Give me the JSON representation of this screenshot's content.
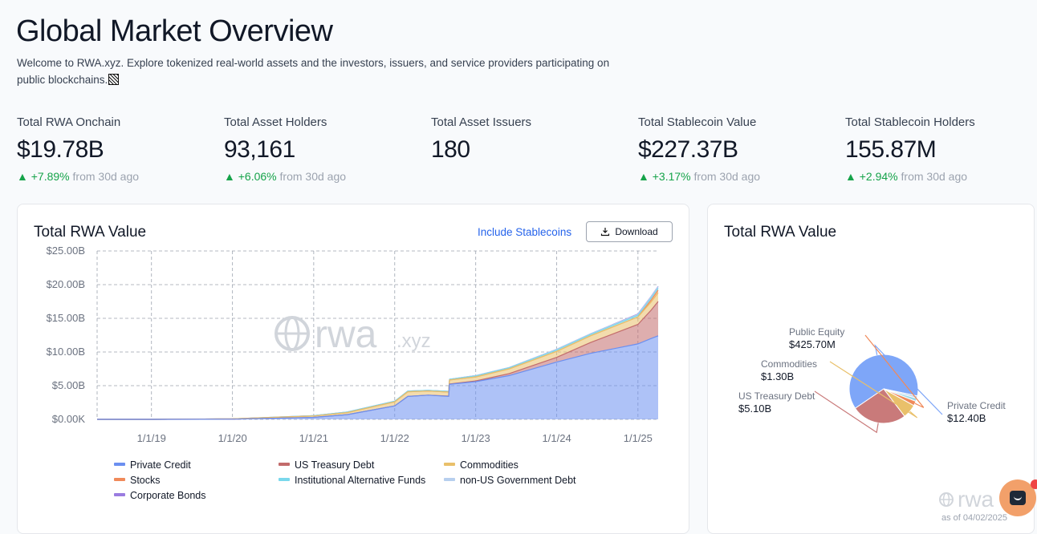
{
  "page": {
    "title": "Global Market Overview",
    "subtitle": "Welcome to RWA.xyz. Explore tokenized real-world assets and the investors, issuers, and service providers participating on public blockchains."
  },
  "stats": [
    {
      "label": "Total RWA Onchain",
      "value": "$19.78B",
      "delta": "▲ +7.89%",
      "period": "from 30d ago"
    },
    {
      "label": "Total Asset Holders",
      "value": "93,161",
      "delta": "▲ +6.06%",
      "period": "from 30d ago"
    },
    {
      "label": "Total Asset Issuers",
      "value": "180",
      "delta": "",
      "period": ""
    },
    {
      "label": "Total Stablecoin Value",
      "value": "$227.37B",
      "delta": "▲ +3.17%",
      "period": "from 30d ago"
    },
    {
      "label": "Total Stablecoin Holders",
      "value": "155.87M",
      "delta": "▲ +2.94%",
      "period": "from 30d ago"
    }
  ],
  "area_card": {
    "title": "Total RWA Value",
    "include_label": "Include Stablecoins",
    "download_label": "Download",
    "watermark": "rwa",
    "watermark_suffix": ".xyz"
  },
  "pie_card": {
    "title": "Total RWA Value",
    "watermark": "rwa",
    "as_of": "as of 04/02/2025"
  },
  "colors": {
    "private_credit": "#6b8ff0",
    "us_treasury": "#c26b6b",
    "commodities": "#e9c06a",
    "stocks": "#f08a5a",
    "inst_alt_funds": "#7ad8ec",
    "non_us_gov": "#b7cfee",
    "corporate_bonds": "#9a7ce0",
    "positive": "#16a34a",
    "link": "#2563eb"
  },
  "chart_data": [
    {
      "type": "area",
      "stacked": true,
      "title": "Total RWA Value",
      "y_ticks": [
        "$0.00K",
        "$5.00B",
        "$10.00B",
        "$15.00B",
        "$20.00B",
        "$25.00B"
      ],
      "x_ticks": [
        "1/1/19",
        "1/1/20",
        "1/1/21",
        "1/1/22",
        "1/1/23",
        "1/1/24",
        "1/1/25"
      ],
      "ylim": [
        0,
        25
      ],
      "y_unit": "B",
      "x_range": [
        "2018-05-01",
        "2025-04-02"
      ],
      "grid": true,
      "legend_position": "bottom",
      "x": [
        "2018-05-01",
        "2019-01-01",
        "2020-01-01",
        "2021-01-01",
        "2021-06-01",
        "2022-01-01",
        "2022-03-01",
        "2022-06-01",
        "2022-09-01",
        "2022-09-05",
        "2023-01-01",
        "2023-06-01",
        "2024-01-01",
        "2024-06-01",
        "2025-01-01",
        "2025-03-01",
        "2025-04-02"
      ],
      "series": [
        {
          "name": "Private Credit",
          "color": "#6b8ff0",
          "values": [
            0,
            0,
            0.02,
            0.3,
            0.7,
            2.0,
            3.4,
            3.6,
            3.4,
            5.2,
            5.6,
            6.5,
            8.5,
            9.8,
            11.2,
            12.0,
            12.4
          ]
        },
        {
          "name": "US Treasury Debt",
          "color": "#c26b6b",
          "values": [
            0,
            0,
            0,
            0,
            0,
            0,
            0,
            0,
            0.05,
            0.05,
            0.1,
            0.3,
            0.7,
            1.6,
            2.9,
            4.2,
            5.1
          ]
        },
        {
          "name": "Commodities",
          "color": "#e9c06a",
          "values": [
            0,
            0,
            0.05,
            0.2,
            0.3,
            0.6,
            0.7,
            0.6,
            0.6,
            0.6,
            0.6,
            0.7,
            0.9,
            1.0,
            1.1,
            1.2,
            1.3
          ]
        },
        {
          "name": "Stocks",
          "color": "#f08a5a",
          "values": [
            0,
            0,
            0,
            0,
            0,
            0,
            0,
            0,
            0,
            0,
            0,
            0,
            0,
            0,
            0,
            0.3,
            0.4
          ]
        },
        {
          "name": "Institutional Alternative Funds",
          "color": "#7ad8ec",
          "values": [
            0,
            0,
            0,
            0.05,
            0.1,
            0.1,
            0.1,
            0.1,
            0.1,
            0.1,
            0.15,
            0.15,
            0.2,
            0.2,
            0.25,
            0.3,
            0.3
          ]
        },
        {
          "name": "non-US Government Debt",
          "color": "#b7cfee",
          "values": [
            0,
            0,
            0,
            0,
            0,
            0,
            0,
            0,
            0,
            0,
            0.05,
            0.05,
            0.1,
            0.1,
            0.15,
            0.2,
            0.2
          ]
        },
        {
          "name": "Corporate Bonds",
          "color": "#9a7ce0",
          "values": [
            0,
            0,
            0,
            0,
            0,
            0,
            0,
            0,
            0,
            0,
            0,
            0,
            0,
            0,
            0.05,
            0.05,
            0.05
          ]
        }
      ]
    },
    {
      "type": "pie",
      "title": "Total RWA Value",
      "slices": [
        {
          "label": "Private Credit",
          "value_label": "$12.40B",
          "value": 12.4,
          "color": "#7ea6f8"
        },
        {
          "label": "US Treasury Debt",
          "value_label": "$5.10B",
          "value": 5.1,
          "color": "#c97a7a"
        },
        {
          "label": "Commodities",
          "value_label": "$1.30B",
          "value": 1.3,
          "color": "#e9c06a"
        },
        {
          "label": "Public Equity",
          "value_label": "$425.70M",
          "value": 0.4257,
          "color": "#f08a5a"
        },
        {
          "label": "",
          "value_label": "",
          "value": 0.3,
          "color": "#9fd8e6"
        },
        {
          "label": "",
          "value_label": "",
          "value": 0.2,
          "color": "#b7cfee"
        }
      ]
    }
  ]
}
